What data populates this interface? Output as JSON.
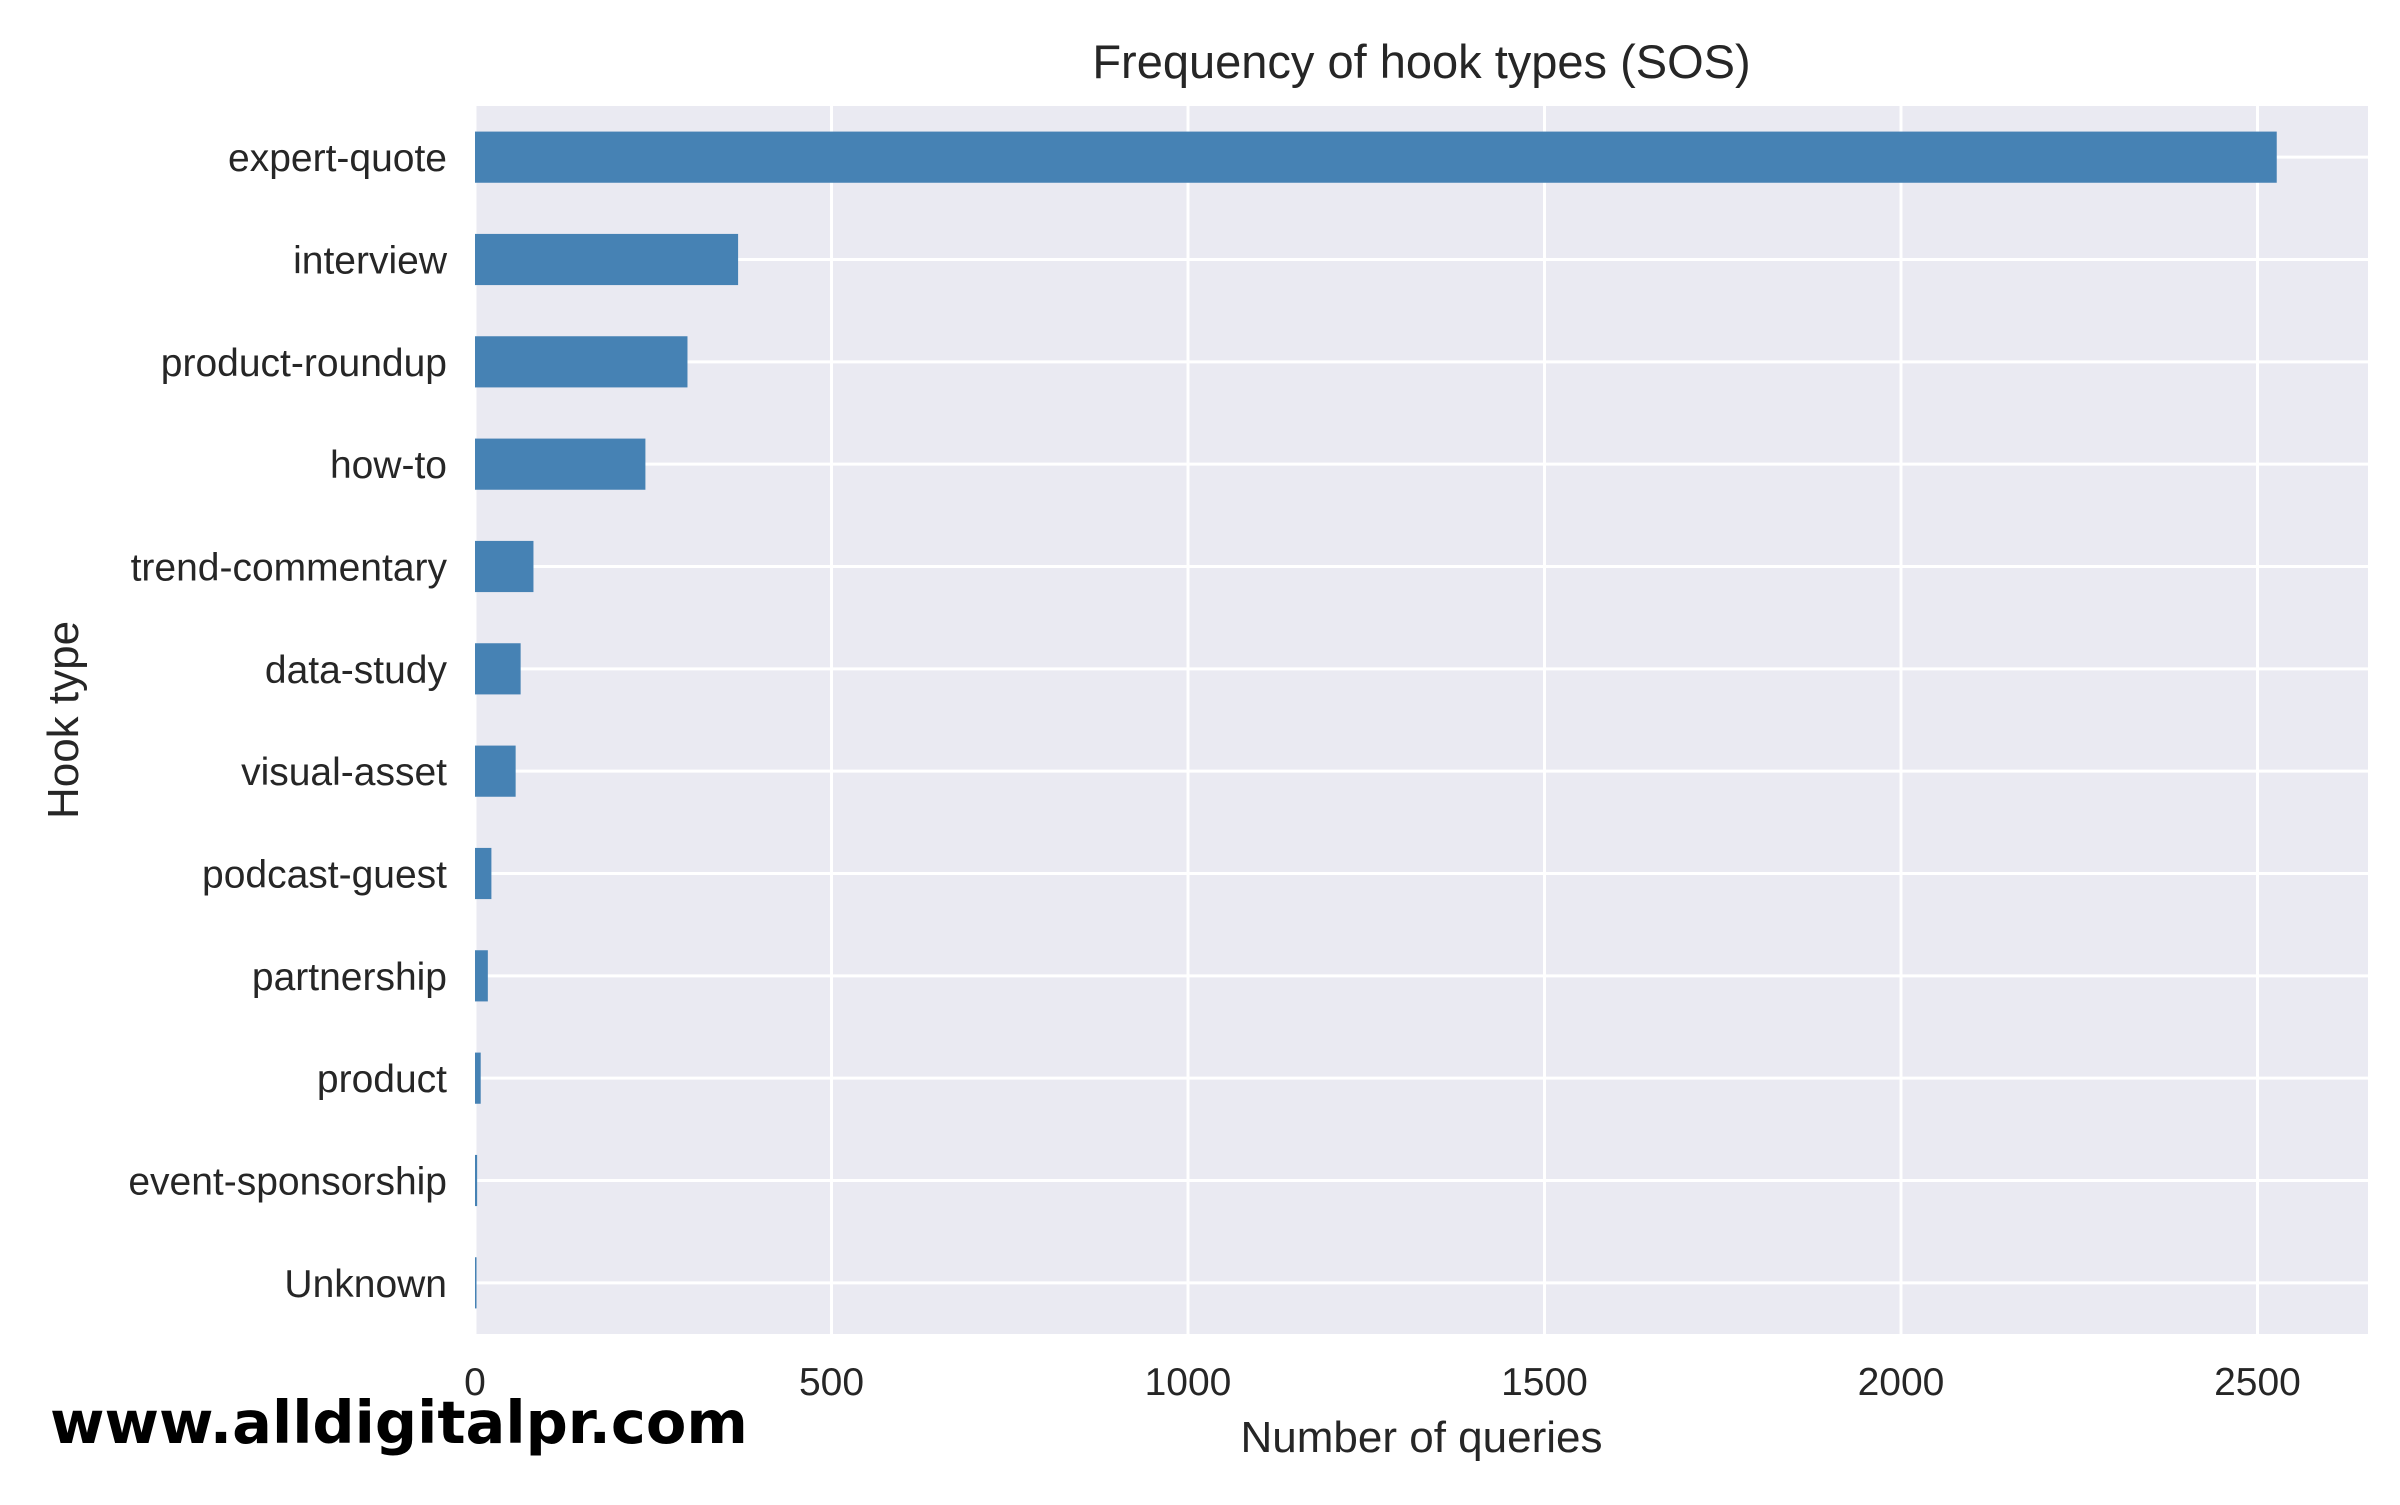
{
  "chart_data": {
    "type": "bar",
    "orientation": "horizontal",
    "title": "Frequency of hook types (SOS)",
    "xlabel": "Number of queries",
    "ylabel": "Hook type",
    "categories": [
      "expert-quote",
      "interview",
      "product-roundup",
      "how-to",
      "trend-commentary",
      "data-study",
      "visual-asset",
      "podcast-guest",
      "partnership",
      "product",
      "event-sponsorship",
      "Unknown"
    ],
    "values": [
      2527,
      369,
      298,
      239,
      82,
      64,
      57,
      23,
      18,
      8,
      3,
      2
    ],
    "xlim": [
      0,
      2655
    ],
    "xticks": [
      0,
      500,
      1000,
      1500,
      2000,
      2500
    ],
    "grid": true,
    "legend": "none",
    "colors": {
      "bar": "#4682b4",
      "plot_background": "#eaeaf2",
      "grid": "#ffffff",
      "text": "#262626"
    }
  },
  "watermark": "www.alldigitalpr.com"
}
